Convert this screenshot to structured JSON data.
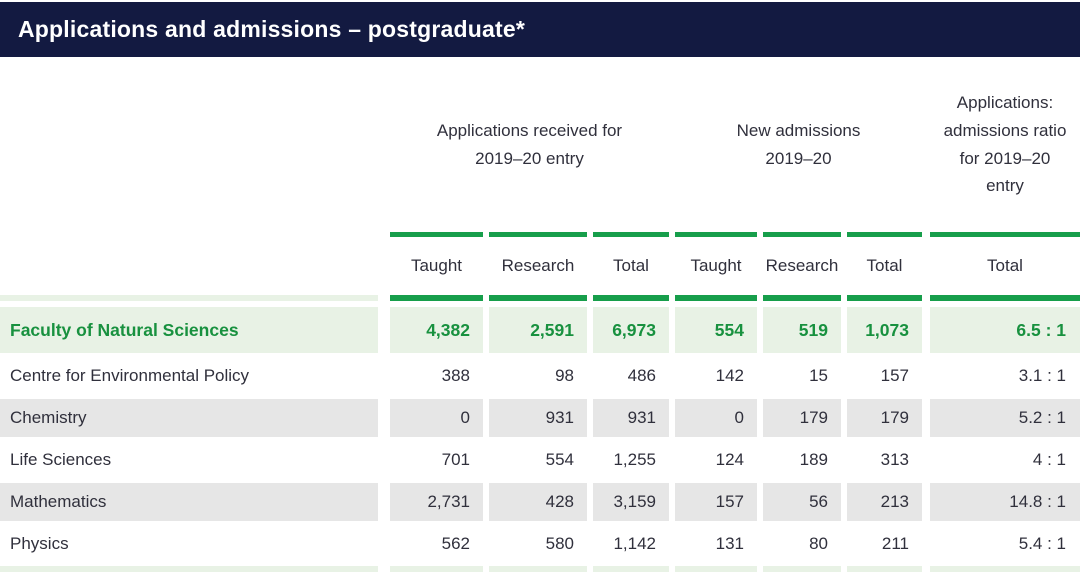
{
  "title": "Applications and admissions – postgraduate*",
  "colors": {
    "navy_bar": "#131a41",
    "green_rule": "#179e4b",
    "highlight_text_green": "#18913f",
    "highlight_bg_green": "#e8f2e5",
    "gray_row_bg": "#e6e6e6",
    "body_text": "#30303c"
  },
  "table": {
    "group_headers": [
      "Applications received for 2019–20 entry",
      "New admissions 2019–20",
      "Applications: admissions ratio for 2019–20 entry"
    ],
    "sub_headers": [
      "Taught",
      "Research",
      "Total",
      "Taught",
      "Research",
      "Total",
      "Total"
    ],
    "rows": [
      {
        "name": "Faculty of Natural Sciences",
        "values": [
          "4,382",
          "2,591",
          "6,973",
          "554",
          "519",
          "1,073",
          "6.5 : 1"
        ]
      },
      {
        "name": "Centre for Environmental Policy",
        "values": [
          "388",
          "98",
          "486",
          "142",
          "15",
          "157",
          "3.1 : 1"
        ]
      },
      {
        "name": "Chemistry",
        "values": [
          "0",
          "931",
          "931",
          "0",
          "179",
          "179",
          "5.2 : 1"
        ]
      },
      {
        "name": "Life Sciences",
        "values": [
          "701",
          "554",
          "1,255",
          "124",
          "189",
          "313",
          "4 : 1"
        ]
      },
      {
        "name": "Mathematics",
        "values": [
          "2,731",
          "428",
          "3,159",
          "157",
          "56",
          "213",
          "14.8 : 1"
        ]
      },
      {
        "name": "Physics",
        "values": [
          "562",
          "580",
          "1,142",
          "131",
          "80",
          "211",
          "5.4 : 1"
        ]
      }
    ]
  }
}
